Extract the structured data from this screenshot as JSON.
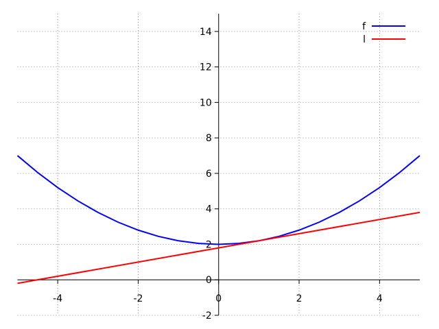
{
  "chart_data": {
    "type": "line",
    "title": "",
    "xlabel": "",
    "ylabel": "",
    "xlim": [
      -5,
      5
    ],
    "ylim": [
      -2,
      15
    ],
    "grid": true,
    "legend_position": "top-right",
    "x_ticks": [
      -4,
      -2,
      0,
      2,
      4
    ],
    "y_ticks": [
      -2,
      0,
      2,
      4,
      6,
      8,
      10,
      12,
      14
    ],
    "x_tick_labels": [
      "-4",
      "-2",
      "0",
      "2",
      "4"
    ],
    "y_tick_labels": [
      "-2",
      "0",
      "2",
      "4",
      "6",
      "8",
      "10",
      "12",
      "14"
    ],
    "series": [
      {
        "name": "f",
        "color": "#0000ff",
        "x": [
          -5,
          -4.5,
          -4,
          -3.5,
          -3,
          -2.5,
          -2,
          -1.5,
          -1,
          -0.5,
          0,
          0.5,
          1,
          1.5,
          2,
          2.5,
          3,
          3.5,
          4,
          4.5,
          5
        ],
        "y": [
          7,
          6.05,
          5.2,
          4.45,
          3.8,
          3.25,
          2.8,
          2.45,
          2.2,
          2.05,
          2,
          2.05,
          2.2,
          2.45,
          2.8,
          3.25,
          3.8,
          4.45,
          5.2,
          6.05,
          7
        ]
      },
      {
        "name": "l",
        "color": "#ff0000",
        "x": [
          -5,
          5
        ],
        "y": [
          -0.2,
          3.8
        ]
      }
    ]
  }
}
